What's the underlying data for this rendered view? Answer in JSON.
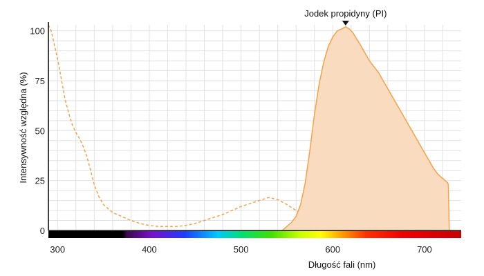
{
  "chart_data": {
    "type": "area",
    "xlabel": "Długość fali (nm)",
    "ylabel": "Intensywność względna (%)",
    "xlim": [
      290,
      740
    ],
    "ylim": [
      0,
      103
    ],
    "x_ticks": [
      300,
      400,
      500,
      600,
      700
    ],
    "y_ticks": [
      0,
      25,
      50,
      75,
      100
    ],
    "grid": true,
    "annotation": {
      "label": "Jodek propidyny (PI)",
      "x": 614
    },
    "colors": {
      "series": "#f5a14a",
      "fill": "#f9dcbf",
      "grid": "#e2e2e2",
      "axis": "#000000"
    },
    "series": [
      {
        "style": "dashed",
        "x": [
          290,
          293,
          296,
          300,
          304,
          308,
          312,
          316,
          320,
          324,
          328,
          332,
          336,
          340,
          345,
          350,
          355,
          360,
          365,
          370,
          380,
          390,
          400,
          410,
          420,
          430,
          440,
          450,
          460,
          470,
          480,
          490,
          500,
          510,
          520,
          530,
          540,
          550,
          560,
          570,
          580,
          590,
          600,
          610,
          620,
          630,
          640,
          650
        ],
        "y": [
          103,
          100,
          94,
          86,
          76,
          66,
          59,
          53,
          49,
          46,
          42,
          37,
          30,
          23,
          17,
          13,
          11,
          9,
          8,
          7,
          5,
          3.5,
          2.5,
          2,
          2,
          2,
          2.5,
          3.5,
          5,
          6.5,
          8,
          10,
          12,
          13.5,
          15,
          16.5,
          15.5,
          13,
          10,
          7,
          5,
          3.5,
          2.5,
          1.5,
          1,
          0.5,
          0.2,
          0
        ]
      },
      {
        "style": "solid-filled",
        "x": [
          545,
          550,
          555,
          560,
          565,
          570,
          575,
          580,
          585,
          590,
          595,
          600,
          605,
          610,
          614,
          618,
          622,
          626,
          630,
          635,
          640,
          645,
          650,
          655,
          660,
          665,
          670,
          675,
          680,
          685,
          690,
          695,
          700,
          705,
          710,
          715,
          720,
          725,
          726,
          727
        ],
        "y": [
          0,
          2,
          4,
          7,
          13,
          24,
          40,
          58,
          73,
          84,
          92,
          97,
          100,
          101,
          102,
          101,
          99,
          96,
          93,
          89,
          85,
          82,
          79,
          75,
          71,
          67,
          63,
          59,
          55,
          51,
          47,
          43,
          39,
          35,
          31,
          28,
          26,
          24,
          23,
          0
        ]
      }
    ]
  }
}
